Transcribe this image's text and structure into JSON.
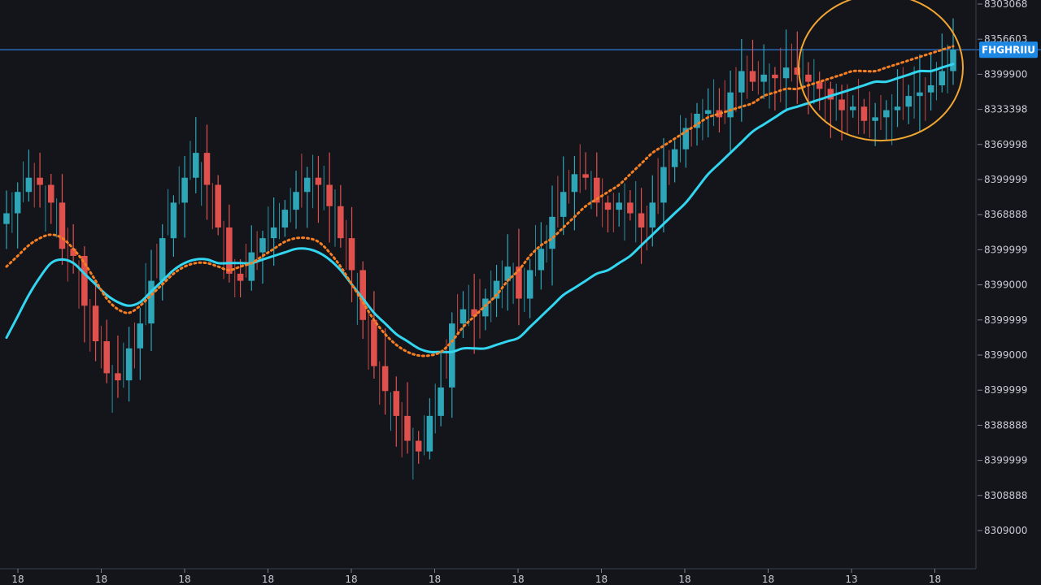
{
  "chart_data": {
    "type": "candlestick",
    "title": "",
    "xlabel": "",
    "ylabel": "",
    "ylim": [
      0,
      16
    ],
    "price_axis_labels": [
      "8303068",
      "8356603",
      "8399900",
      "8333398",
      "8369998",
      "8399999",
      "8368888",
      "8399999",
      "8399000",
      "8399999",
      "8399000",
      "8399999",
      "8388888",
      "8399999",
      "8308888",
      "8309000"
    ],
    "time_axis_labels": [
      "18",
      "18",
      "18",
      "18",
      "18",
      "18",
      "18",
      "18",
      "18",
      "18",
      "13",
      "18"
    ],
    "current_price_label": "FHGHRIIU",
    "current_price_value": 14.6,
    "close": [
      10.0,
      10.6,
      11.0,
      10.8,
      10.3,
      9.0,
      8.8,
      7.4,
      6.4,
      5.5,
      5.3,
      6.2,
      6.9,
      8.1,
      9.3,
      10.3,
      11.0,
      11.7,
      10.8,
      9.6,
      8.3,
      8.1,
      8.9,
      9.3,
      9.6,
      10.1,
      10.6,
      11.0,
      10.8,
      10.2,
      9.3,
      8.4,
      7.0,
      5.7,
      5.0,
      4.3,
      3.6,
      3.3,
      4.3,
      5.1,
      6.9,
      7.3,
      7.1,
      7.6,
      8.1,
      8.5,
      7.6,
      8.4,
      9.0,
      9.9,
      10.6,
      11.1,
      11.0,
      10.3,
      10.1,
      10.3,
      10.0,
      9.6,
      10.3,
      11.3,
      11.8,
      12.4,
      12.8,
      12.9,
      12.7,
      13.4,
      14.0,
      13.7,
      13.9,
      13.8,
      14.1,
      13.9,
      13.7,
      13.5,
      13.2,
      12.9,
      13.0,
      12.6,
      12.7,
      12.9,
      13.0,
      13.3,
      13.4,
      13.6,
      14.0,
      14.6
    ],
    "ma_fast_dotted": [
      8.5,
      8.8,
      9.1,
      9.3,
      9.4,
      9.3,
      9.0,
      8.6,
      8.1,
      7.6,
      7.3,
      7.2,
      7.4,
      7.7,
      8.0,
      8.3,
      8.5,
      8.6,
      8.6,
      8.5,
      8.4,
      8.5,
      8.6,
      8.8,
      9.0,
      9.2,
      9.3,
      9.3,
      9.2,
      8.9,
      8.5,
      8.0,
      7.5,
      7.0,
      6.6,
      6.3,
      6.1,
      6.0,
      6.0,
      6.1,
      6.4,
      6.8,
      7.1,
      7.4,
      7.7,
      8.1,
      8.4,
      8.8,
      9.1,
      9.3,
      9.6,
      9.9,
      10.2,
      10.4,
      10.6,
      10.8,
      11.1,
      11.4,
      11.7,
      11.9,
      12.1,
      12.3,
      12.5,
      12.7,
      12.8,
      12.9,
      13.0,
      13.1,
      13.3,
      13.4,
      13.5,
      13.5,
      13.6,
      13.7,
      13.8,
      13.9,
      14.0,
      14.0,
      14.0,
      14.1,
      14.2,
      14.3,
      14.4,
      14.5,
      14.6,
      14.7
    ],
    "ma_slow_solid": [
      6.5,
      7.1,
      7.7,
      8.2,
      8.6,
      8.7,
      8.6,
      8.3,
      8.0,
      7.7,
      7.5,
      7.4,
      7.5,
      7.8,
      8.1,
      8.4,
      8.6,
      8.7,
      8.7,
      8.6,
      8.6,
      8.6,
      8.6,
      8.7,
      8.8,
      8.9,
      9.0,
      9.0,
      8.9,
      8.7,
      8.4,
      8.0,
      7.6,
      7.2,
      6.9,
      6.6,
      6.4,
      6.2,
      6.1,
      6.1,
      6.1,
      6.2,
      6.2,
      6.2,
      6.3,
      6.4,
      6.5,
      6.8,
      7.1,
      7.4,
      7.7,
      7.9,
      8.1,
      8.3,
      8.4,
      8.6,
      8.8,
      9.1,
      9.4,
      9.7,
      10.0,
      10.3,
      10.7,
      11.1,
      11.4,
      11.7,
      12.0,
      12.3,
      12.5,
      12.7,
      12.9,
      13.0,
      13.1,
      13.2,
      13.3,
      13.4,
      13.5,
      13.6,
      13.7,
      13.7,
      13.8,
      13.9,
      14.0,
      14.0,
      14.1,
      14.2
    ],
    "colors": {
      "background": "#13151b",
      "up": "#2ea6b8",
      "down": "#e0514d",
      "ma_slow": "#33d6f0",
      "ma_fast": "#f57f22",
      "price_line": "#2f79d4",
      "current_price_bg": "#1e88e5",
      "highlight_circle": "#f2a531",
      "axis_text": "#c9ccd4",
      "axis_line": "#3a3e48"
    }
  }
}
